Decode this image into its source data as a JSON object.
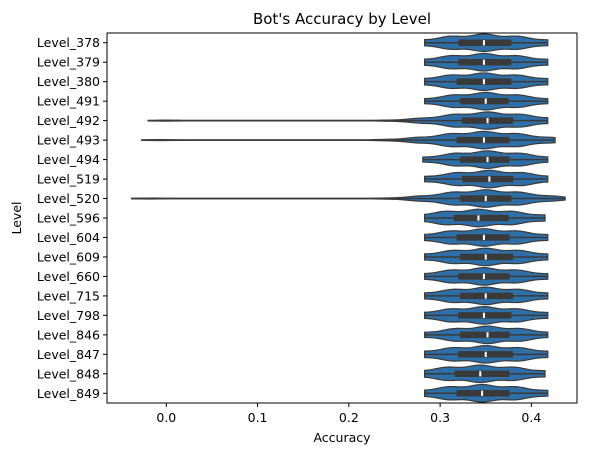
{
  "chart_data": {
    "type": "violin",
    "title": "Bot's Accuracy by Level",
    "xlabel": "Accuracy",
    "ylabel": "Level",
    "xlim": [
      -0.065,
      0.45
    ],
    "xticks": [
      0.0,
      0.1,
      0.2,
      0.3,
      0.4
    ],
    "xtick_labels": [
      "0.0",
      "0.1",
      "0.2",
      "0.3",
      "0.4"
    ],
    "grid": false,
    "orientation": "horizontal",
    "colors": {
      "violin_fill": "#2f6fa7",
      "violin_edge": "#3a3a3a",
      "box": "#3a3a3a",
      "median": "#ffffff"
    },
    "categories": [
      "Level_378",
      "Level_379",
      "Level_380",
      "Level_491",
      "Level_492",
      "Level_493",
      "Level_494",
      "Level_519",
      "Level_520",
      "Level_596",
      "Level_604",
      "Level_609",
      "Level_660",
      "Level_715",
      "Level_798",
      "Level_846",
      "Level_847",
      "Level_848",
      "Level_849"
    ],
    "violins": [
      {
        "category": "Level_378",
        "min": 0.283,
        "q1": 0.32,
        "median": 0.348,
        "q3": 0.378,
        "max": 0.418
      },
      {
        "category": "Level_379",
        "min": 0.283,
        "q1": 0.32,
        "median": 0.348,
        "q3": 0.378,
        "max": 0.418
      },
      {
        "category": "Level_380",
        "min": 0.283,
        "q1": 0.318,
        "median": 0.348,
        "q3": 0.378,
        "max": 0.418
      },
      {
        "category": "Level_491",
        "min": 0.283,
        "q1": 0.322,
        "median": 0.35,
        "q3": 0.375,
        "max": 0.418
      },
      {
        "category": "Level_492",
        "min": -0.02,
        "q1": 0.324,
        "median": 0.352,
        "q3": 0.38,
        "max": 0.418
      },
      {
        "category": "Level_493",
        "min": -0.027,
        "q1": 0.318,
        "median": 0.348,
        "q3": 0.376,
        "max": 0.426
      },
      {
        "category": "Level_494",
        "min": 0.281,
        "q1": 0.322,
        "median": 0.352,
        "q3": 0.376,
        "max": 0.418
      },
      {
        "category": "Level_519",
        "min": 0.283,
        "q1": 0.324,
        "median": 0.354,
        "q3": 0.38,
        "max": 0.418
      },
      {
        "category": "Level_520",
        "min": -0.038,
        "q1": 0.322,
        "median": 0.35,
        "q3": 0.378,
        "max": 0.437
      },
      {
        "category": "Level_596",
        "min": 0.283,
        "q1": 0.315,
        "median": 0.342,
        "q3": 0.375,
        "max": 0.415
      },
      {
        "category": "Level_604",
        "min": 0.283,
        "q1": 0.318,
        "median": 0.348,
        "q3": 0.376,
        "max": 0.418
      },
      {
        "category": "Level_609",
        "min": 0.283,
        "q1": 0.322,
        "median": 0.35,
        "q3": 0.38,
        "max": 0.418
      },
      {
        "category": "Level_660",
        "min": 0.283,
        "q1": 0.32,
        "median": 0.348,
        "q3": 0.376,
        "max": 0.418
      },
      {
        "category": "Level_715",
        "min": 0.283,
        "q1": 0.322,
        "median": 0.35,
        "q3": 0.38,
        "max": 0.418
      },
      {
        "category": "Level_798",
        "min": 0.283,
        "q1": 0.32,
        "median": 0.348,
        "q3": 0.378,
        "max": 0.418
      },
      {
        "category": "Level_846",
        "min": 0.283,
        "q1": 0.322,
        "median": 0.352,
        "q3": 0.376,
        "max": 0.418
      },
      {
        "category": "Level_847",
        "min": 0.283,
        "q1": 0.32,
        "median": 0.35,
        "q3": 0.38,
        "max": 0.418
      },
      {
        "category": "Level_848",
        "min": 0.283,
        "q1": 0.316,
        "median": 0.344,
        "q3": 0.376,
        "max": 0.415
      },
      {
        "category": "Level_849",
        "min": 0.283,
        "q1": 0.318,
        "median": 0.346,
        "q3": 0.376,
        "max": 0.418
      }
    ]
  }
}
